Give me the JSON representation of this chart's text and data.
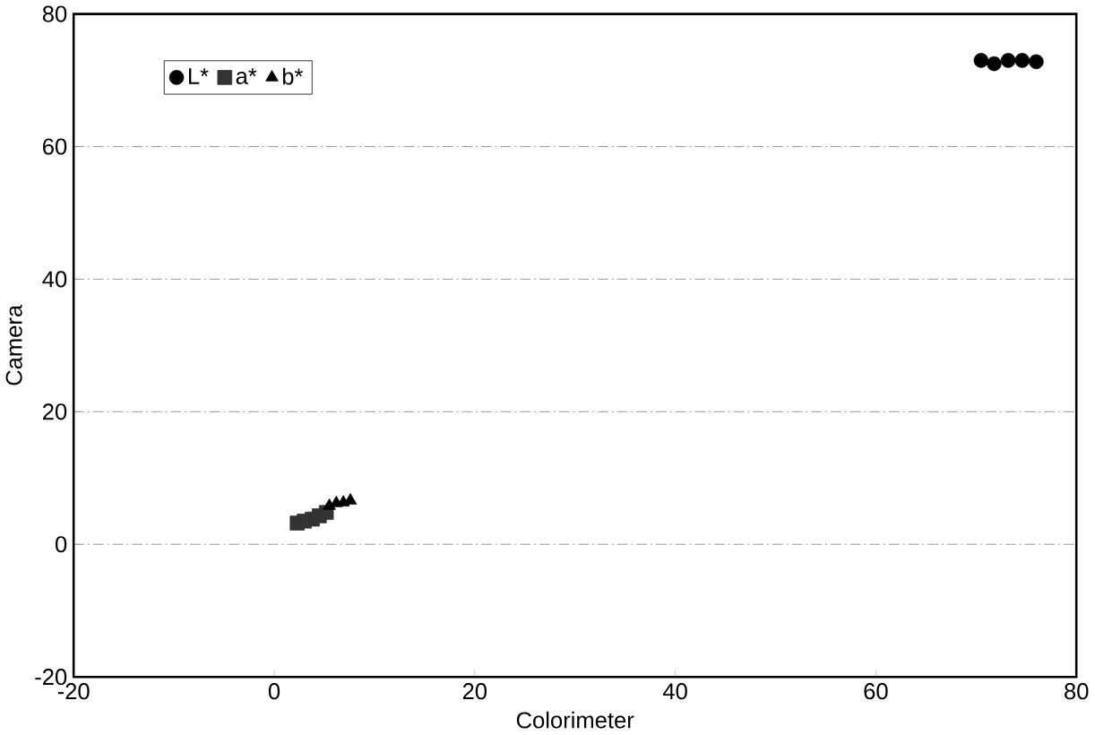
{
  "chart_data": {
    "type": "scatter",
    "xlabel": "Colorimeter",
    "ylabel": "Camera",
    "xlim": [
      -20,
      80
    ],
    "ylim": [
      -20,
      80
    ],
    "xticks": [
      -20,
      0,
      20,
      40,
      60,
      80
    ],
    "yticks": [
      -20,
      0,
      20,
      40,
      60,
      80
    ],
    "grid": "y",
    "legend": "top left",
    "series": [
      {
        "name": "L*",
        "color": "#000000",
        "marker": "circle",
        "x": [
          70.5,
          71.8,
          73.2,
          74.6,
          76.0
        ],
        "values": [
          73.0,
          72.5,
          73.0,
          73.0,
          72.8
        ]
      },
      {
        "name": "a*",
        "color": "#333333",
        "marker": "square",
        "x": [
          2.3,
          3.0,
          3.8,
          4.5,
          5.2
        ],
        "values": [
          3.2,
          3.5,
          3.8,
          4.3,
          4.8
        ]
      },
      {
        "name": "b*",
        "color": "#000000",
        "marker": "triangle",
        "x": [
          5.5,
          6.2,
          6.9,
          7.6
        ],
        "values": [
          5.8,
          6.2,
          6.3,
          6.6
        ]
      }
    ]
  }
}
